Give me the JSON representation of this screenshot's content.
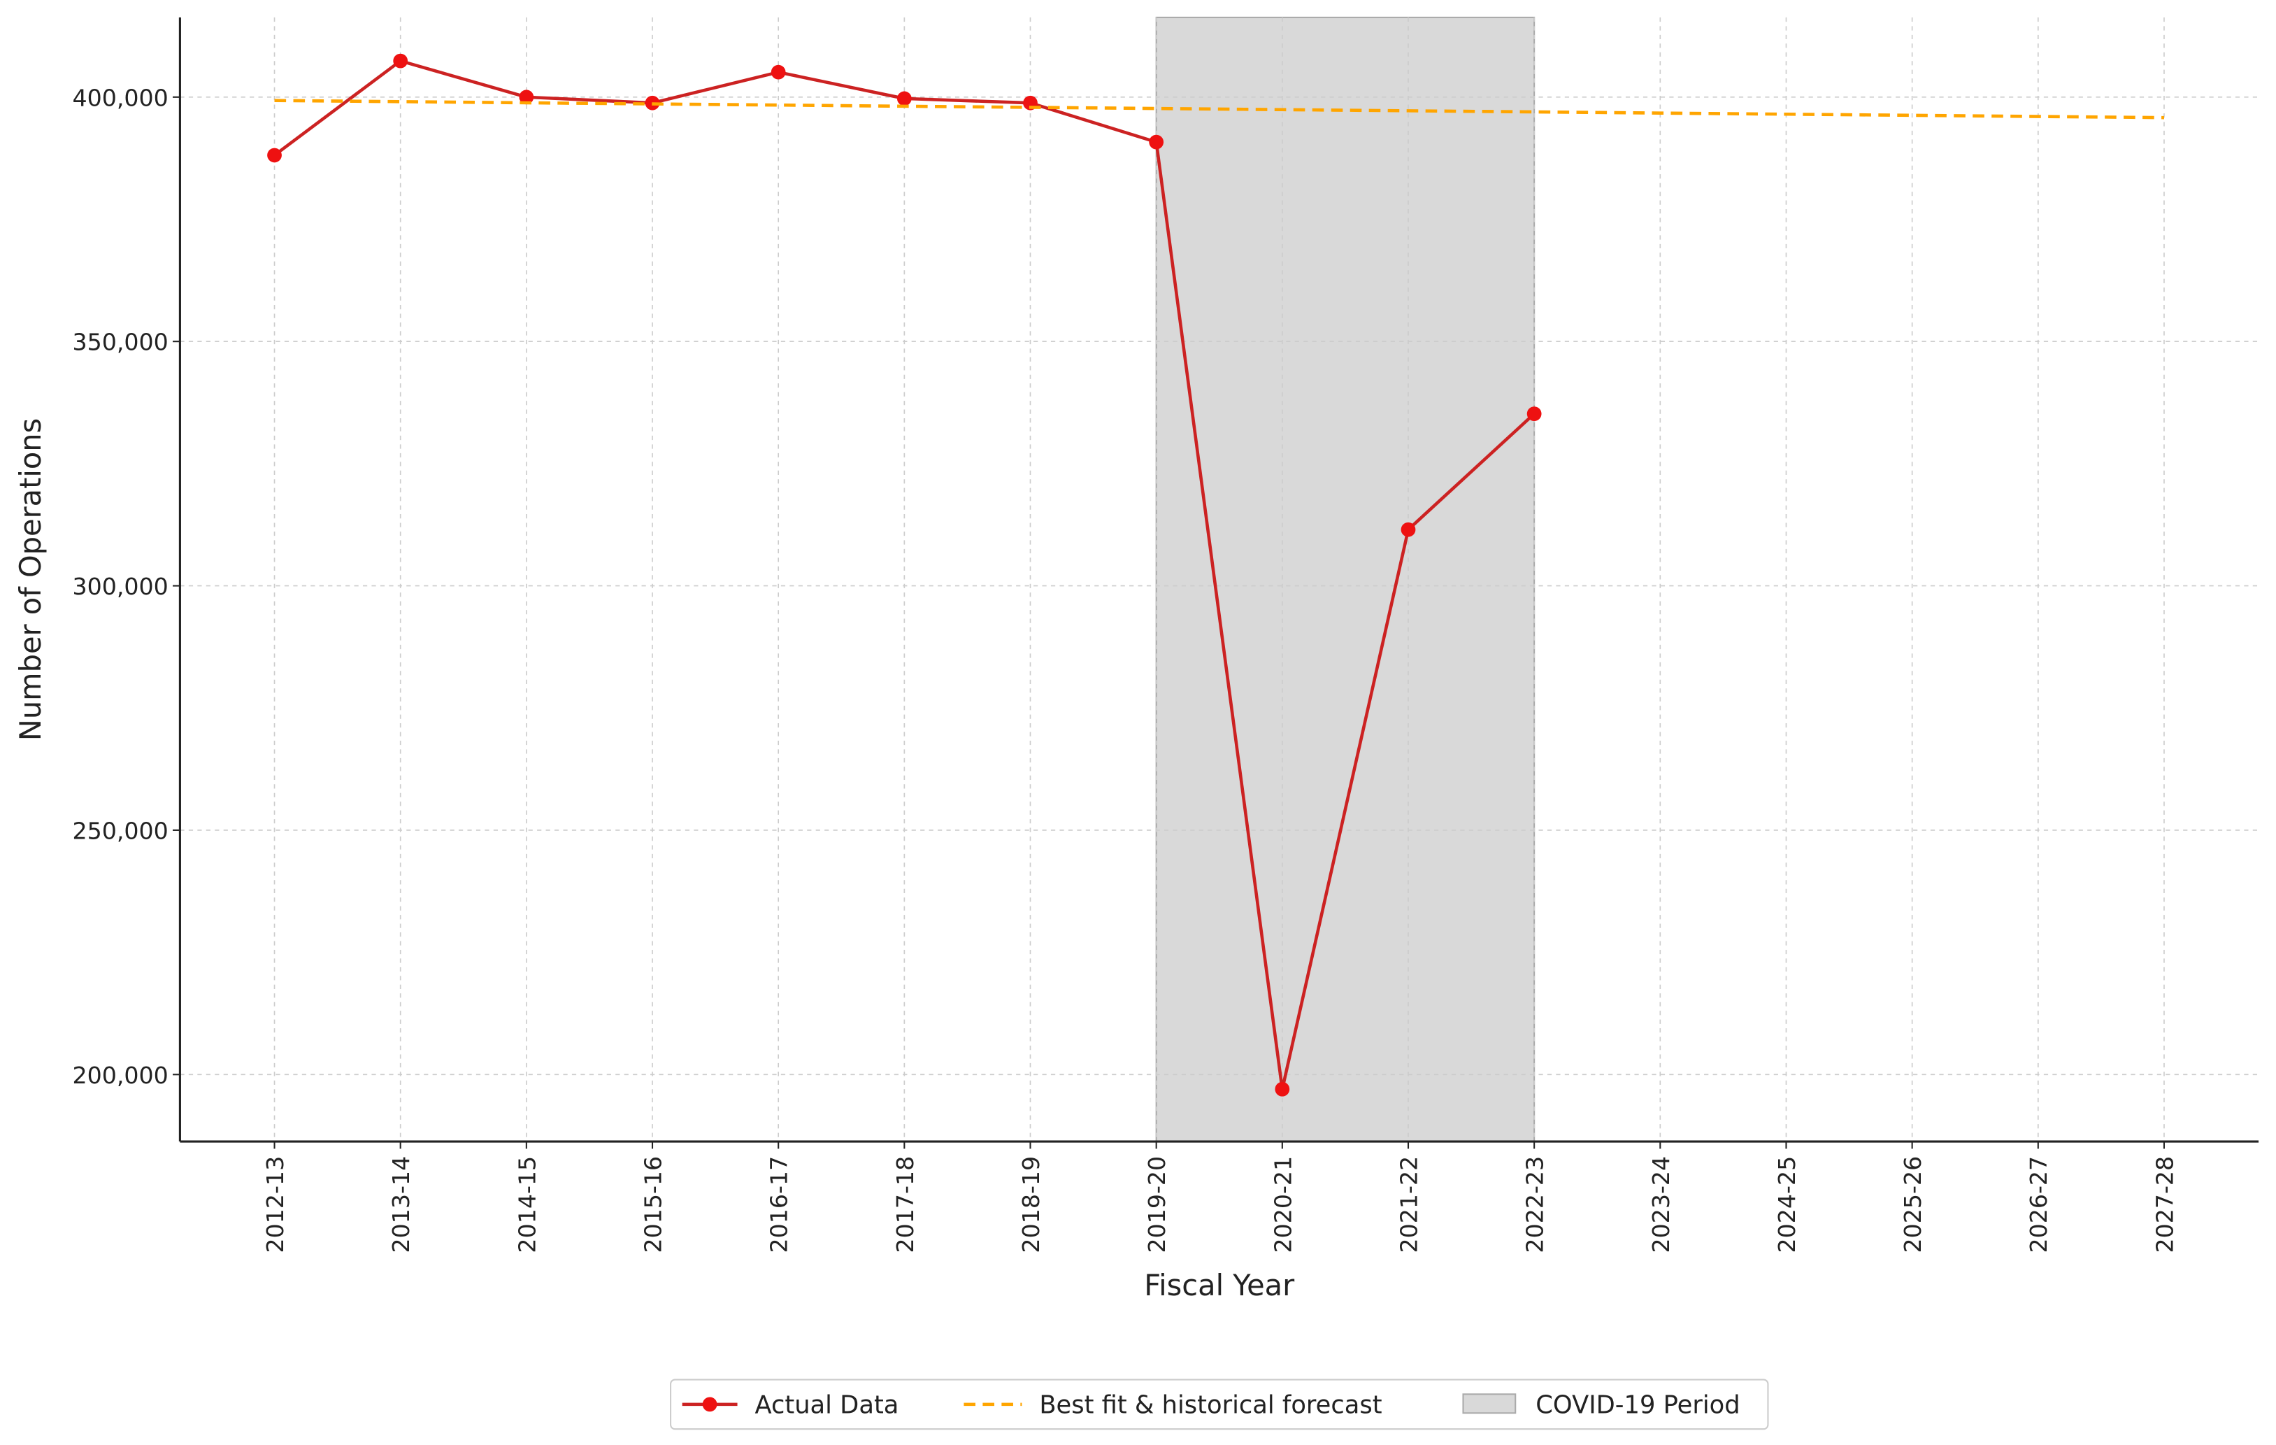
{
  "chart_data": {
    "type": "line",
    "x_label": "Fiscal Year",
    "y_label": "Number of Operations",
    "categories": [
      "2012-13",
      "2013-14",
      "2014-15",
      "2015-16",
      "2016-17",
      "2017-18",
      "2018-19",
      "2019-20",
      "2020-21",
      "2021-22",
      "2022-23",
      "2023-24",
      "2024-25",
      "2025-26",
      "2026-27",
      "2027-28"
    ],
    "series": [
      {
        "name": "Actual Data",
        "color": "#cc2222",
        "marker_color": "#ee1111",
        "dashed": false,
        "values": [
          388100,
          407400,
          400000,
          398800,
          405100,
          399700,
          398800,
          390800,
          197000,
          311500,
          335200,
          null,
          null,
          null,
          null,
          null
        ]
      },
      {
        "name": "Best fit & historical forecast",
        "color": "#ffa500",
        "dashed": true,
        "values": [
          399300,
          399070,
          398830,
          398600,
          398370,
          398130,
          397900,
          397670,
          397430,
          397200,
          396970,
          396730,
          396500,
          396270,
          396030,
          395800
        ]
      }
    ],
    "shade": {
      "name": "COVID-19 Period",
      "from": "2019-20",
      "to": "2022-23",
      "color": "#d9d9d9"
    },
    "ylim": [
      186300,
      416300
    ],
    "yticks": [
      {
        "value": 200000,
        "label": "200,000"
      },
      {
        "value": 250000,
        "label": "250,000"
      },
      {
        "value": 300000,
        "label": "300,000"
      },
      {
        "value": 350000,
        "label": "350,000"
      },
      {
        "value": 400000,
        "label": "400,000"
      }
    ],
    "grid": true,
    "legend": "bottom"
  }
}
